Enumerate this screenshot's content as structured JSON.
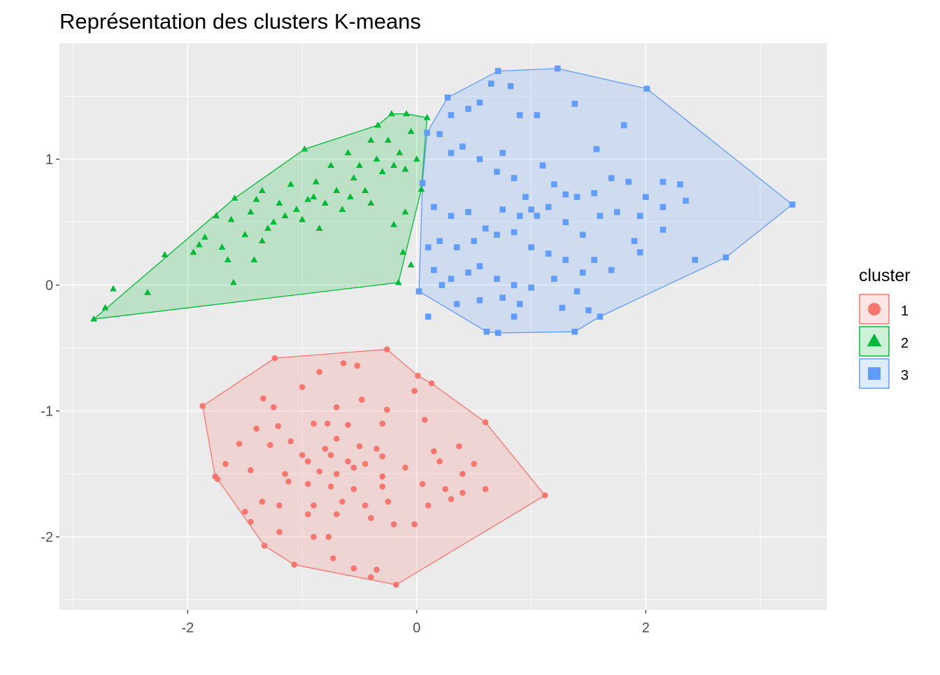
{
  "chart_data": {
    "type": "scatter",
    "title": "Représentation des clusters K-means",
    "xlabel": "",
    "ylabel": "",
    "xlim": [
      -3.12,
      3.58
    ],
    "ylim": [
      -2.58,
      1.92
    ],
    "x_ticks": [
      -2,
      0,
      2
    ],
    "y_ticks": [
      -2,
      -1,
      0,
      1
    ],
    "x_tick_labels": [
      "-2",
      "0",
      "2"
    ],
    "y_tick_labels": [
      "-2",
      "-1",
      "0",
      "1"
    ],
    "grid": true,
    "legend": {
      "title": "cluster",
      "placement": "right"
    },
    "series": [
      {
        "name": "1",
        "color": "#F8766D",
        "shape": "circle",
        "hull": [
          [
            -0.26,
            -0.51
          ],
          [
            -1.24,
            -0.58
          ],
          [
            -1.87,
            -0.96
          ],
          [
            -1.76,
            -1.52
          ],
          [
            -1.74,
            -1.54
          ],
          [
            -1.33,
            -2.07
          ],
          [
            -1.07,
            -2.22
          ],
          [
            -0.18,
            -2.38
          ],
          [
            1.12,
            -1.67
          ],
          [
            0.6,
            -1.09
          ],
          [
            0.13,
            -0.78
          ],
          [
            0.01,
            -0.72
          ]
        ],
        "points": [
          [
            -0.26,
            -0.51
          ],
          [
            -1.24,
            -0.58
          ],
          [
            -1.87,
            -0.96
          ],
          [
            -1.76,
            -1.52
          ],
          [
            -1.74,
            -1.54
          ],
          [
            -1.33,
            -2.07
          ],
          [
            -1.07,
            -2.22
          ],
          [
            -0.18,
            -2.38
          ],
          [
            1.12,
            -1.67
          ],
          [
            0.6,
            -1.09
          ],
          [
            0.13,
            -0.78
          ],
          [
            0.01,
            -0.72
          ],
          [
            -0.85,
            -0.69
          ],
          [
            -0.64,
            -0.62
          ],
          [
            -0.52,
            -0.64
          ],
          [
            -1.0,
            -0.81
          ],
          [
            -0.7,
            -0.97
          ],
          [
            -0.48,
            -0.91
          ],
          [
            -1.34,
            -0.9
          ],
          [
            -0.26,
            -0.99
          ],
          [
            -0.02,
            -0.84
          ],
          [
            -1.25,
            -0.97
          ],
          [
            -0.9,
            -1.1
          ],
          [
            -0.78,
            -1.1
          ],
          [
            -0.6,
            -1.11
          ],
          [
            -1.4,
            -1.14
          ],
          [
            -1.21,
            -1.12
          ],
          [
            -0.3,
            -1.1
          ],
          [
            0.07,
            -1.07
          ],
          [
            -1.1,
            -1.24
          ],
          [
            -0.8,
            -1.3
          ],
          [
            -0.7,
            -1.22
          ],
          [
            -0.5,
            -1.28
          ],
          [
            -0.35,
            -1.3
          ],
          [
            -1.55,
            -1.26
          ],
          [
            -1.28,
            -1.27
          ],
          [
            -1.0,
            -1.35
          ],
          [
            -0.95,
            -1.4
          ],
          [
            -0.75,
            -1.35
          ],
          [
            -0.6,
            -1.4
          ],
          [
            -0.45,
            -1.42
          ],
          [
            -0.3,
            -1.36
          ],
          [
            0.15,
            -1.32
          ],
          [
            0.37,
            -1.28
          ],
          [
            -1.67,
            -1.42
          ],
          [
            -1.45,
            -1.47
          ],
          [
            -1.15,
            -1.5
          ],
          [
            -0.85,
            -1.48
          ],
          [
            -0.7,
            -1.5
          ],
          [
            -0.55,
            -1.45
          ],
          [
            -0.3,
            -1.52
          ],
          [
            -0.1,
            -1.45
          ],
          [
            0.2,
            -1.4
          ],
          [
            0.5,
            -1.42
          ],
          [
            -1.12,
            -1.56
          ],
          [
            -0.95,
            -1.58
          ],
          [
            -0.75,
            -1.6
          ],
          [
            -0.55,
            -1.62
          ],
          [
            -0.3,
            -1.6
          ],
          [
            0.05,
            -1.58
          ],
          [
            0.25,
            -1.62
          ],
          [
            0.4,
            -1.65
          ],
          [
            -1.35,
            -1.72
          ],
          [
            -1.2,
            -1.75
          ],
          [
            -0.9,
            -1.75
          ],
          [
            -0.65,
            -1.72
          ],
          [
            -0.45,
            -1.75
          ],
          [
            -0.25,
            -1.72
          ],
          [
            0.1,
            -1.75
          ],
          [
            0.3,
            -1.7
          ],
          [
            -1.5,
            -1.8
          ],
          [
            -0.95,
            -1.82
          ],
          [
            -0.7,
            -1.82
          ],
          [
            -0.4,
            -1.85
          ],
          [
            -0.2,
            -1.9
          ],
          [
            -0.02,
            -1.9
          ],
          [
            -1.2,
            -1.96
          ],
          [
            -0.9,
            -2.0
          ],
          [
            -0.77,
            -2.0
          ],
          [
            -0.73,
            -2.17
          ],
          [
            -0.55,
            -2.25
          ],
          [
            -0.35,
            -2.26
          ],
          [
            -0.4,
            -2.32
          ],
          [
            -1.45,
            -1.88
          ],
          [
            0.4,
            -1.5
          ],
          [
            0.6,
            -1.62
          ]
        ]
      },
      {
        "name": "2",
        "color": "#00BA38",
        "shape": "triangle",
        "hull": [
          [
            -2.82,
            -0.27
          ],
          [
            -1.59,
            0.69
          ],
          [
            -0.98,
            1.08
          ],
          [
            -0.34,
            1.27
          ],
          [
            -0.22,
            1.36
          ],
          [
            -0.09,
            1.36
          ],
          [
            0.09,
            1.33
          ],
          [
            0.04,
            0.76
          ],
          [
            -0.16,
            0.02
          ]
        ],
        "points": [
          [
            -2.82,
            -0.27
          ],
          [
            -1.59,
            0.69
          ],
          [
            -0.98,
            1.08
          ],
          [
            -0.34,
            1.27
          ],
          [
            -0.22,
            1.36
          ],
          [
            -0.09,
            1.36
          ],
          [
            0.09,
            1.33
          ],
          [
            0.04,
            0.76
          ],
          [
            -0.16,
            0.02
          ],
          [
            -2.72,
            -0.18
          ],
          [
            -2.65,
            -0.03
          ],
          [
            -2.35,
            -0.06
          ],
          [
            -2.2,
            0.24
          ],
          [
            -1.95,
            0.26
          ],
          [
            -1.85,
            0.38
          ],
          [
            -1.7,
            0.3
          ],
          [
            -1.65,
            0.2
          ],
          [
            -1.6,
            0.02
          ],
          [
            -1.5,
            0.4
          ],
          [
            -1.45,
            0.58
          ],
          [
            -1.35,
            0.35
          ],
          [
            -1.3,
            0.45
          ],
          [
            -1.25,
            0.5
          ],
          [
            -1.2,
            0.65
          ],
          [
            -1.15,
            0.55
          ],
          [
            -1.1,
            0.8
          ],
          [
            -1.05,
            0.6
          ],
          [
            -1.0,
            0.52
          ],
          [
            -0.9,
            0.7
          ],
          [
            -0.88,
            0.82
          ],
          [
            -0.85,
            0.45
          ],
          [
            -0.8,
            0.65
          ],
          [
            -0.75,
            0.95
          ],
          [
            -0.7,
            0.75
          ],
          [
            -0.65,
            0.6
          ],
          [
            -0.6,
            1.05
          ],
          [
            -0.58,
            0.7
          ],
          [
            -0.55,
            0.85
          ],
          [
            -0.5,
            0.95
          ],
          [
            -0.45,
            0.75
          ],
          [
            -0.4,
            1.15
          ],
          [
            -0.4,
            0.65
          ],
          [
            -0.35,
            1.0
          ],
          [
            -0.3,
            0.9
          ],
          [
            -0.25,
            1.15
          ],
          [
            -0.2,
            0.95
          ],
          [
            -0.15,
            1.05
          ],
          [
            -0.1,
            0.92
          ],
          [
            -0.05,
            1.22
          ],
          [
            -0.1,
            0.58
          ],
          [
            -0.2,
            0.48
          ],
          [
            -0.12,
            0.26
          ],
          [
            -1.75,
            0.55
          ],
          [
            -1.9,
            0.32
          ],
          [
            -1.62,
            0.52
          ],
          [
            -1.42,
            0.2
          ],
          [
            -1.4,
            0.68
          ],
          [
            -1.35,
            0.75
          ],
          [
            -0.95,
            0.68
          ],
          [
            0.0,
            1.0
          ],
          [
            -0.05,
            0.16
          ]
        ]
      },
      {
        "name": "3",
        "color": "#619CFF",
        "shape": "square",
        "hull": [
          [
            0.02,
            -0.05
          ],
          [
            0.61,
            -0.37
          ],
          [
            0.71,
            -0.38
          ],
          [
            1.38,
            -0.37
          ],
          [
            1.6,
            -0.25
          ],
          [
            2.7,
            0.22
          ],
          [
            3.28,
            0.64
          ],
          [
            2.01,
            1.56
          ],
          [
            1.23,
            1.72
          ],
          [
            0.71,
            1.7
          ],
          [
            0.27,
            1.49
          ],
          [
            0.09,
            1.21
          ],
          [
            0.05,
            0.81
          ]
        ],
        "points": [
          [
            0.02,
            -0.05
          ],
          [
            0.61,
            -0.37
          ],
          [
            0.71,
            -0.38
          ],
          [
            1.38,
            -0.37
          ],
          [
            1.6,
            -0.25
          ],
          [
            2.7,
            0.22
          ],
          [
            3.28,
            0.64
          ],
          [
            2.01,
            1.56
          ],
          [
            1.23,
            1.72
          ],
          [
            0.71,
            1.7
          ],
          [
            0.27,
            1.49
          ],
          [
            0.09,
            1.21
          ],
          [
            0.05,
            0.81
          ],
          [
            0.3,
            1.35
          ],
          [
            0.45,
            1.4
          ],
          [
            0.55,
            1.45
          ],
          [
            0.65,
            1.6
          ],
          [
            0.82,
            1.58
          ],
          [
            0.9,
            1.35
          ],
          [
            1.05,
            1.35
          ],
          [
            1.38,
            1.44
          ],
          [
            1.81,
            1.27
          ],
          [
            1.57,
            1.08
          ],
          [
            0.2,
            1.2
          ],
          [
            0.3,
            1.05
          ],
          [
            0.4,
            1.1
          ],
          [
            0.55,
            1.0
          ],
          [
            0.75,
            1.05
          ],
          [
            0.7,
            0.9
          ],
          [
            0.85,
            0.85
          ],
          [
            0.95,
            0.7
          ],
          [
            1.1,
            0.95
          ],
          [
            1.2,
            0.8
          ],
          [
            1.3,
            0.72
          ],
          [
            1.4,
            0.7
          ],
          [
            1.55,
            0.73
          ],
          [
            1.7,
            0.85
          ],
          [
            1.85,
            0.82
          ],
          [
            2.0,
            0.7
          ],
          [
            2.15,
            0.82
          ],
          [
            2.3,
            0.8
          ],
          [
            2.35,
            0.67
          ],
          [
            0.15,
            0.62
          ],
          [
            0.3,
            0.55
          ],
          [
            0.45,
            0.58
          ],
          [
            0.6,
            0.45
          ],
          [
            0.75,
            0.6
          ],
          [
            0.9,
            0.55
          ],
          [
            1.0,
            0.6
          ],
          [
            1.05,
            0.55
          ],
          [
            1.15,
            0.62
          ],
          [
            1.3,
            0.5
          ],
          [
            1.45,
            0.4
          ],
          [
            1.6,
            0.55
          ],
          [
            1.75,
            0.58
          ],
          [
            1.95,
            0.55
          ],
          [
            2.15,
            0.62
          ],
          [
            2.15,
            0.44
          ],
          [
            0.2,
            0.35
          ],
          [
            0.35,
            0.3
          ],
          [
            0.5,
            0.35
          ],
          [
            0.7,
            0.4
          ],
          [
            0.85,
            0.42
          ],
          [
            1.0,
            0.3
          ],
          [
            1.15,
            0.25
          ],
          [
            1.3,
            0.2
          ],
          [
            1.55,
            0.2
          ],
          [
            1.7,
            0.12
          ],
          [
            1.9,
            0.35
          ],
          [
            1.95,
            0.26
          ],
          [
            2.43,
            0.2
          ],
          [
            0.15,
            0.12
          ],
          [
            0.3,
            0.05
          ],
          [
            0.45,
            0.1
          ],
          [
            0.55,
            0.15
          ],
          [
            0.7,
            0.05
          ],
          [
            0.85,
            0.0
          ],
          [
            1.0,
            -0.02
          ],
          [
            1.2,
            0.05
          ],
          [
            1.4,
            -0.05
          ],
          [
            1.45,
            0.1
          ],
          [
            0.35,
            -0.15
          ],
          [
            0.55,
            -0.12
          ],
          [
            0.75,
            -0.1
          ],
          [
            0.9,
            -0.15
          ],
          [
            1.27,
            -0.18
          ],
          [
            1.5,
            -0.2
          ],
          [
            0.85,
            -0.25
          ],
          [
            0.1,
            0.3
          ],
          [
            0.22,
            0.0
          ],
          [
            0.1,
            -0.25
          ]
        ]
      }
    ]
  }
}
